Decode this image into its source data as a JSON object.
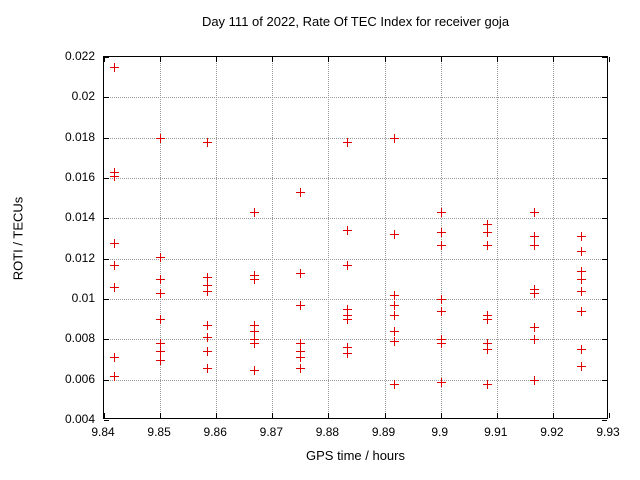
{
  "chart_data": {
    "type": "scatter",
    "title": "Day 111 of 2022, Rate Of TEC Index for receiver goja",
    "xlabel": "GPS time / hours",
    "ylabel": "ROTI / TECUs",
    "xlim": [
      9.84,
      9.93
    ],
    "ylim": [
      0.004,
      0.022
    ],
    "x_ticks": [
      9.84,
      9.85,
      9.86,
      9.87,
      9.88,
      9.89,
      9.9,
      9.91,
      9.92,
      9.93
    ],
    "x_tick_labels": [
      "9.84",
      "9.85",
      "9.86",
      "9.87",
      "9.88",
      "9.89",
      "9.9",
      "9.91",
      "9.92",
      "9.93"
    ],
    "y_ticks": [
      0.004,
      0.006,
      0.008,
      0.01,
      0.012,
      0.014,
      0.016,
      0.018,
      0.02,
      0.022
    ],
    "y_tick_labels": [
      "0.004",
      "0.006",
      "0.008",
      "0.01",
      "0.012",
      "0.014",
      "0.016",
      "0.018",
      "0.02",
      "0.022"
    ],
    "grid": true,
    "legend": "none",
    "marker": "plus",
    "marker_color": "#e00000",
    "grid_color": "#9a9a9a",
    "series": [
      {
        "name": "ROTI",
        "points": [
          [
            9.8417,
            0.0215
          ],
          [
            9.8417,
            0.0163
          ],
          [
            9.8417,
            0.0161
          ],
          [
            9.8417,
            0.0128
          ],
          [
            9.8417,
            0.0117
          ],
          [
            9.8417,
            0.0106
          ],
          [
            9.8417,
            0.0071
          ],
          [
            9.8417,
            0.0062
          ],
          [
            9.85,
            0.018
          ],
          [
            9.85,
            0.0121
          ],
          [
            9.85,
            0.011
          ],
          [
            9.85,
            0.0103
          ],
          [
            9.85,
            0.009
          ],
          [
            9.85,
            0.0078
          ],
          [
            9.85,
            0.0074
          ],
          [
            9.85,
            0.007
          ],
          [
            9.8583,
            0.0178
          ],
          [
            9.8583,
            0.0111
          ],
          [
            9.8583,
            0.0107
          ],
          [
            9.8583,
            0.0104
          ],
          [
            9.8583,
            0.0087
          ],
          [
            9.8583,
            0.0081
          ],
          [
            9.8583,
            0.0074
          ],
          [
            9.8583,
            0.0066
          ],
          [
            9.8667,
            0.0143
          ],
          [
            9.8667,
            0.0112
          ],
          [
            9.8667,
            0.011
          ],
          [
            9.8667,
            0.0087
          ],
          [
            9.8667,
            0.0084
          ],
          [
            9.8667,
            0.008
          ],
          [
            9.8667,
            0.0078
          ],
          [
            9.8667,
            0.0065
          ],
          [
            9.875,
            0.0153
          ],
          [
            9.875,
            0.0113
          ],
          [
            9.875,
            0.0097
          ],
          [
            9.875,
            0.0078
          ],
          [
            9.875,
            0.0074
          ],
          [
            9.875,
            0.0071
          ],
          [
            9.875,
            0.0066
          ],
          [
            9.8833,
            0.0178
          ],
          [
            9.8833,
            0.0134
          ],
          [
            9.8833,
            0.0117
          ],
          [
            9.8833,
            0.0095
          ],
          [
            9.8833,
            0.0092
          ],
          [
            9.8833,
            0.009
          ],
          [
            9.8833,
            0.0076
          ],
          [
            9.8833,
            0.0073
          ],
          [
            9.8917,
            0.018
          ],
          [
            9.8917,
            0.0132
          ],
          [
            9.8917,
            0.0102
          ],
          [
            9.8917,
            0.0097
          ],
          [
            9.8917,
            0.0092
          ],
          [
            9.8917,
            0.0084
          ],
          [
            9.8917,
            0.0079
          ],
          [
            9.8917,
            0.0058
          ],
          [
            9.9,
            0.0143
          ],
          [
            9.9,
            0.0133
          ],
          [
            9.9,
            0.0127
          ],
          [
            9.9,
            0.01
          ],
          [
            9.9,
            0.0094
          ],
          [
            9.9,
            0.008
          ],
          [
            9.9,
            0.0078
          ],
          [
            9.9,
            0.0059
          ],
          [
            9.9083,
            0.0137
          ],
          [
            9.9083,
            0.0133
          ],
          [
            9.9083,
            0.0127
          ],
          [
            9.9083,
            0.0092
          ],
          [
            9.9083,
            0.009
          ],
          [
            9.9083,
            0.0078
          ],
          [
            9.9083,
            0.0075
          ],
          [
            9.9083,
            0.0058
          ],
          [
            9.9167,
            0.0143
          ],
          [
            9.9167,
            0.0131
          ],
          [
            9.9167,
            0.0127
          ],
          [
            9.9167,
            0.0105
          ],
          [
            9.9167,
            0.0103
          ],
          [
            9.9167,
            0.0086
          ],
          [
            9.9167,
            0.008
          ],
          [
            9.9167,
            0.006
          ],
          [
            9.925,
            0.0131
          ],
          [
            9.925,
            0.0124
          ],
          [
            9.925,
            0.0114
          ],
          [
            9.925,
            0.011
          ],
          [
            9.925,
            0.0104
          ],
          [
            9.925,
            0.0094
          ],
          [
            9.925,
            0.0075
          ],
          [
            9.925,
            0.0067
          ]
        ]
      }
    ]
  }
}
